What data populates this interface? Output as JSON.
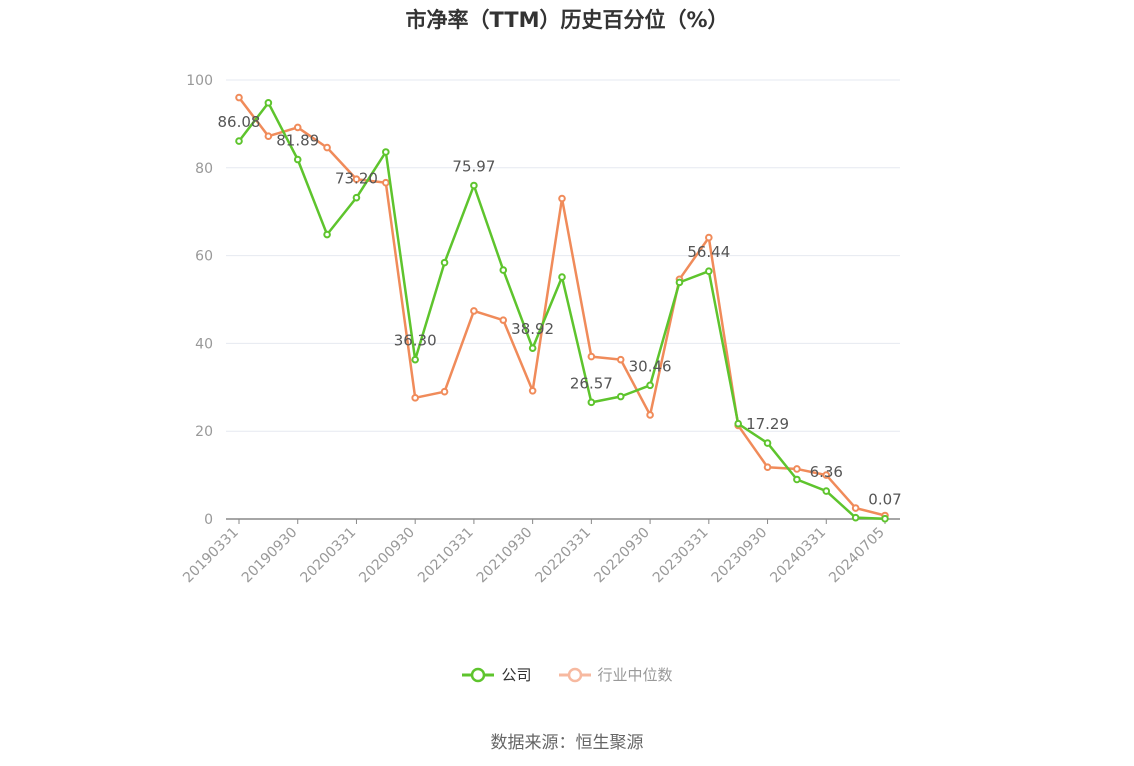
{
  "title": "市净率（TTM）历史百分位（%）",
  "source": "数据来源：恒生聚源",
  "colors": {
    "company": "#5ec42d",
    "industry": "#f08b5a",
    "grid": "#e6e9f0",
    "axis": "#999999"
  },
  "legend": [
    {
      "name": "公司",
      "color": "#5ec42d",
      "active": true
    },
    {
      "name": "行业中位数",
      "color": "#f7b9a0",
      "active": false
    }
  ],
  "chart_data": {
    "type": "line",
    "title": "市净率（TTM）历史百分位（%）",
    "x": [
      "20190331",
      "20190630",
      "20190930",
      "20191231",
      "20200331",
      "20200630",
      "20200930",
      "20201231",
      "20210331",
      "20210630",
      "20210930",
      "20211231",
      "20220331",
      "20220630",
      "20220930",
      "20221231",
      "20230331",
      "20230630",
      "20230930",
      "20231231",
      "20240331",
      "20240630",
      "20240705"
    ],
    "x_tick_labels": [
      "20190331",
      "20190930",
      "20200331",
      "20200930",
      "20210331",
      "20210930",
      "20220331",
      "20220930",
      "20230331",
      "20230930",
      "20240331",
      "20240705"
    ],
    "ylim": [
      0,
      100
    ],
    "y_ticks": [
      0,
      20,
      40,
      60,
      80,
      100
    ],
    "grid": true,
    "legend_position": "bottom",
    "series": [
      {
        "name": "公司",
        "color": "#5ec42d",
        "values": [
          86.08,
          94.8,
          81.89,
          64.8,
          73.2,
          83.6,
          36.3,
          58.4,
          75.97,
          56.7,
          38.92,
          55.1,
          26.57,
          27.9,
          30.46,
          53.9,
          56.44,
          21.7,
          17.29,
          9.0,
          6.36,
          0.3,
          0.07
        ],
        "data_labels": [
          {
            "index": 0,
            "text": "86.08"
          },
          {
            "index": 2,
            "text": "81.89"
          },
          {
            "index": 4,
            "text": "73.20"
          },
          {
            "index": 6,
            "text": "36.30"
          },
          {
            "index": 8,
            "text": "75.97"
          },
          {
            "index": 10,
            "text": "38.92"
          },
          {
            "index": 12,
            "text": "26.57"
          },
          {
            "index": 14,
            "text": "30.46"
          },
          {
            "index": 16,
            "text": "56.44"
          },
          {
            "index": 18,
            "text": "17.29"
          },
          {
            "index": 20,
            "text": "6.36"
          },
          {
            "index": 22,
            "text": "0.07"
          }
        ]
      },
      {
        "name": "行业中位数",
        "color": "#f08b5a",
        "values": [
          96.0,
          87.2,
          89.2,
          84.6,
          77.4,
          76.6,
          27.6,
          29.0,
          47.4,
          45.3,
          29.2,
          73.0,
          37.0,
          36.3,
          23.7,
          54.6,
          64.1,
          21.3,
          11.8,
          11.4,
          10.0,
          2.5,
          0.8
        ]
      }
    ]
  }
}
